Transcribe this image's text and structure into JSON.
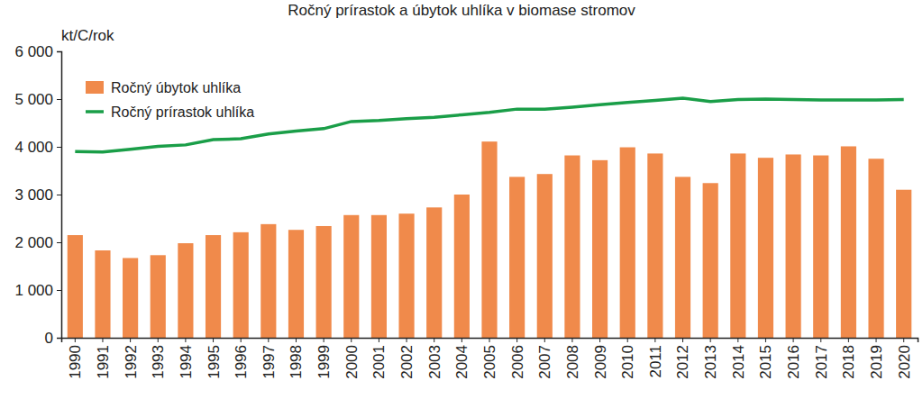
{
  "chart_data": {
    "type": "bar",
    "title": "Ročný prírastok a úbytok uhlíka v biomase stromov",
    "y_label": "kt/C/rok",
    "categories": [
      "1990",
      "1991",
      "1992",
      "1993",
      "1994",
      "1995",
      "1996",
      "1997",
      "1998",
      "1999",
      "2000",
      "2001",
      "2002",
      "2003",
      "2004",
      "2005",
      "2006",
      "2007",
      "2008",
      "2009",
      "2010",
      "2011",
      "2012",
      "2013",
      "2014",
      "2015",
      "2016",
      "2017",
      "2018",
      "2019",
      "2020"
    ],
    "series": [
      {
        "name": "Ročný úbytok uhlíka",
        "type": "bar",
        "color": "#f08a4b",
        "values": [
          2150,
          1830,
          1670,
          1730,
          1980,
          2150,
          2210,
          2380,
          2260,
          2340,
          2570,
          2570,
          2600,
          2730,
          3000,
          4110,
          3370,
          3430,
          3820,
          3720,
          3990,
          3860,
          3370,
          3240,
          3860,
          3770,
          3840,
          3820,
          4010,
          3750,
          3100
        ]
      },
      {
        "name": "Ročný prírastok uhlíka",
        "type": "line",
        "color": "#1a9e48",
        "values": [
          3900,
          3890,
          3950,
          4010,
          4040,
          4150,
          4170,
          4270,
          4330,
          4380,
          4530,
          4550,
          4590,
          4620,
          4670,
          4720,
          4790,
          4790,
          4830,
          4880,
          4930,
          4970,
          5020,
          4950,
          4990,
          5000,
          4990,
          4980,
          4980,
          4980,
          4990
        ]
      }
    ],
    "ylim": [
      0,
      6000
    ],
    "yticks": [
      0,
      {
        "value": 1000,
        "label": "1 000"
      },
      {
        "value": 2000,
        "label": "2 000"
      },
      {
        "value": 3000,
        "label": "3 000"
      },
      {
        "value": 4000,
        "label": "4 000"
      },
      {
        "value": 5000,
        "label": "5 000"
      },
      {
        "value": 6000,
        "label": "6 000"
      }
    ],
    "grid": false,
    "legend": "upper left"
  }
}
